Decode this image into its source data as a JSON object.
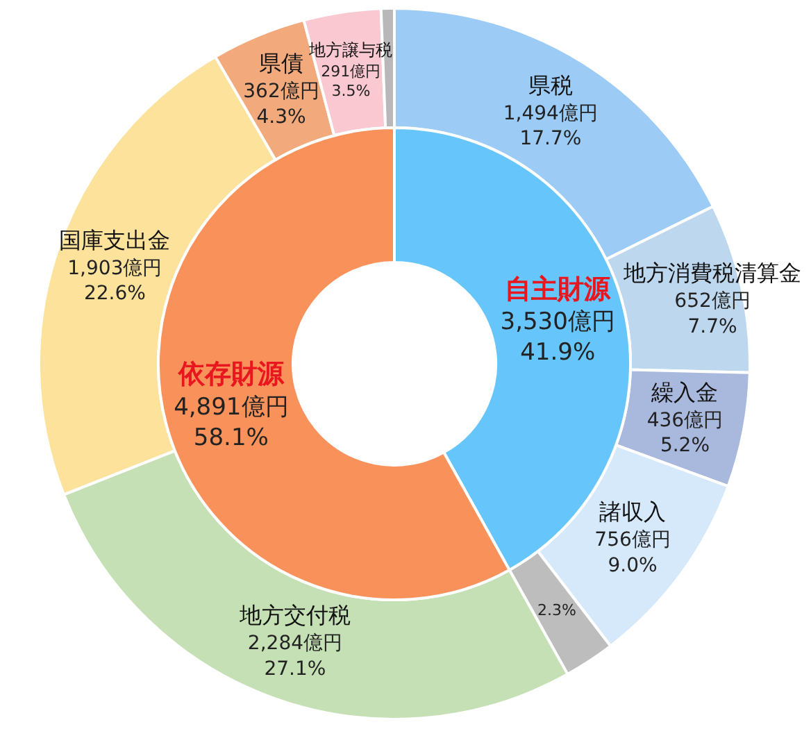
{
  "chart_data": [
    {
      "type": "donut",
      "categories": [
        "県税",
        "地方消費税清算金",
        "繰入金",
        "諸収入",
        null,
        "地方交付税",
        "国庫支出金",
        "県債",
        "地方譲与税",
        null
      ],
      "values": [
        17.7,
        7.7,
        5.2,
        9.0,
        2.3,
        27.1,
        22.6,
        4.3,
        3.5,
        0.6
      ],
      "colors": [
        "#9ccbf5",
        "#bdd7ee",
        "#a9b9dd",
        "#d5e9fb",
        "#bdbdbd",
        "#c5e0b4",
        "#fde29c",
        "#f2aa7c",
        "#fac8d0",
        "#b8b8b8"
      ],
      "value_labels": [
        "1,494億円\n17.7%",
        "652億円\n7.7%",
        "436億円\n5.2%",
        "756億円\n9.0%",
        "2.3%",
        "2,284億円\n27.1%",
        "1,903億円\n22.6%",
        "362億円\n4.3%",
        "291億円\n3.5%",
        null
      ]
    },
    {
      "type": "donut",
      "categories": [
        "自主財源",
        "依存財源"
      ],
      "values": [
        41.9,
        58.1
      ],
      "colors": [
        "#66c5fb",
        "#f9925a"
      ],
      "value_labels": [
        "3,530億円\n41.9%",
        "4,891億円\n58.1%"
      ]
    }
  ]
}
